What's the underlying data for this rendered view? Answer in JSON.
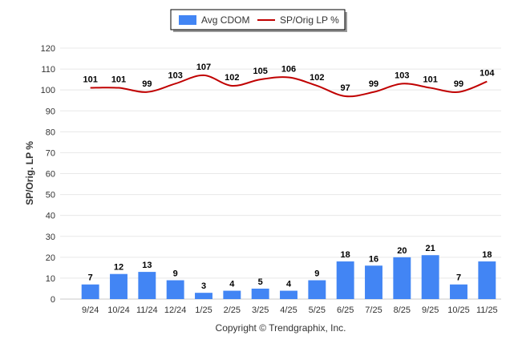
{
  "chart_data": {
    "type": "bar+line",
    "title": "",
    "categories": [
      "9/24",
      "10/24",
      "11/24",
      "12/24",
      "1/25",
      "2/25",
      "3/25",
      "4/25",
      "5/25",
      "6/25",
      "7/25",
      "8/25",
      "9/25",
      "10/25",
      "11/25"
    ],
    "series": [
      {
        "name": "Avg CDOM",
        "type": "bar",
        "color": "#4285f4",
        "values": [
          7,
          12,
          13,
          9,
          3,
          4,
          5,
          4,
          9,
          18,
          16,
          20,
          21,
          7,
          18
        ]
      },
      {
        "name": "SP/Orig LP %",
        "type": "line",
        "color": "#c00000",
        "values": [
          101,
          101,
          99,
          103,
          107,
          102,
          105,
          106,
          102,
          97,
          99,
          103,
          101,
          99,
          104
        ]
      }
    ],
    "xlabel": "",
    "ylabel": "SP/Orig. LP %",
    "ylim": [
      0,
      120
    ],
    "yticks": [
      0,
      10,
      20,
      30,
      40,
      50,
      60,
      70,
      80,
      90,
      100,
      110,
      120
    ],
    "grid": true,
    "legend": "top-center"
  },
  "footer": {
    "copyright": "Copyright © Trendgraphix, Inc."
  }
}
